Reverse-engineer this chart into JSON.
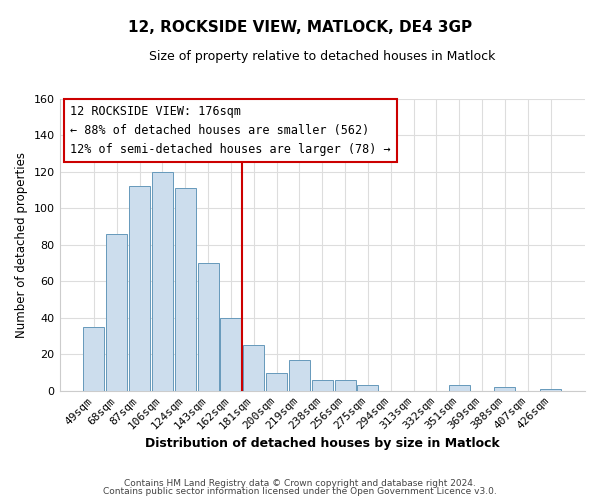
{
  "title": "12, ROCKSIDE VIEW, MATLOCK, DE4 3GP",
  "subtitle": "Size of property relative to detached houses in Matlock",
  "xlabel": "Distribution of detached houses by size in Matlock",
  "ylabel": "Number of detached properties",
  "categories": [
    "49sqm",
    "68sqm",
    "87sqm",
    "106sqm",
    "124sqm",
    "143sqm",
    "162sqm",
    "181sqm",
    "200sqm",
    "219sqm",
    "238sqm",
    "256sqm",
    "275sqm",
    "294sqm",
    "313sqm",
    "332sqm",
    "351sqm",
    "369sqm",
    "388sqm",
    "407sqm",
    "426sqm"
  ],
  "values": [
    35,
    86,
    112,
    120,
    111,
    70,
    40,
    25,
    10,
    17,
    6,
    6,
    3,
    0,
    0,
    0,
    3,
    0,
    2,
    0,
    1
  ],
  "bar_color": "#ccdded",
  "bar_edge_color": "#6699bb",
  "vline_x": 7,
  "vline_color": "#cc0000",
  "annotation_title": "12 ROCKSIDE VIEW: 176sqm",
  "annotation_line1": "← 88% of detached houses are smaller (562)",
  "annotation_line2": "12% of semi-detached houses are larger (78) →",
  "annotation_box_facecolor": "#ffffff",
  "annotation_box_edgecolor": "#cc0000",
  "ylim": [
    0,
    160
  ],
  "yticks": [
    0,
    20,
    40,
    60,
    80,
    100,
    120,
    140,
    160
  ],
  "footer1": "Contains HM Land Registry data © Crown copyright and database right 2024.",
  "footer2": "Contains public sector information licensed under the Open Government Licence v3.0.",
  "bg_color": "#ffffff",
  "grid_color": "#dddddd"
}
